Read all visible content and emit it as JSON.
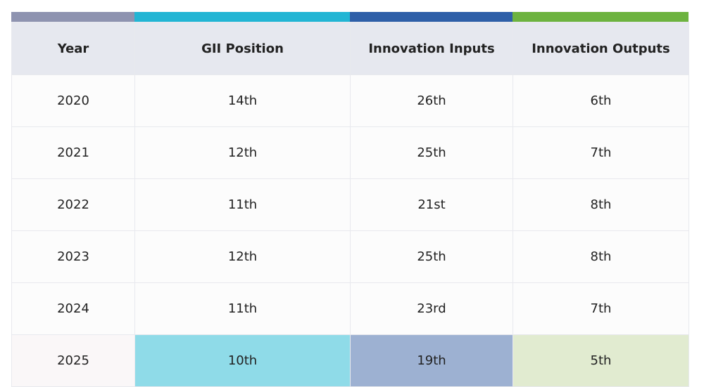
{
  "table": {
    "header": [
      "Year",
      "GII Position",
      "Innovation Inputs",
      "Innovation Outputs"
    ],
    "rows": [
      [
        "2020",
        "14th",
        "26th",
        "6th"
      ],
      [
        "2021",
        "12th",
        "25th",
        "7th"
      ],
      [
        "2022",
        "11th",
        "21st",
        "8th"
      ],
      [
        "2023",
        "12th",
        "25th",
        "8th"
      ],
      [
        "2024",
        "11th",
        "23rd",
        "7th"
      ],
      [
        "2025",
        "10th",
        "19th",
        "5th"
      ]
    ]
  }
}
